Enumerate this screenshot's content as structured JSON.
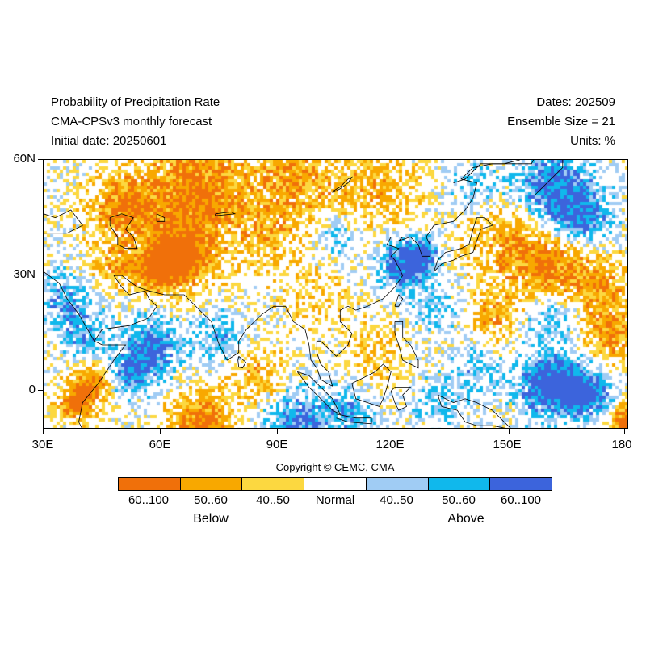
{
  "header": {
    "title": "Probability of Precipitation Rate",
    "model": "CMA-CPSv3 monthly forecast",
    "initial": "Initial date: 20250601",
    "dates": "Dates: 202509",
    "ensemble": "Ensemble Size = 21",
    "units": "Units: %"
  },
  "map": {
    "lon_range": [
      30,
      180
    ],
    "lat_range": [
      -10,
      60
    ],
    "x_ticks": [
      "30E",
      "60E",
      "90E",
      "120E",
      "150E",
      "180"
    ],
    "y_ticks": [
      "60N",
      "30N",
      "0"
    ],
    "coastline_color": "#000000"
  },
  "copyright": "Copyright © CEMC, CMA",
  "legend": {
    "bins": [
      {
        "label": "60..100",
        "color": "#f0700a"
      },
      {
        "label": "50..60",
        "color": "#f8a800"
      },
      {
        "label": "40..50",
        "color": "#fcd840"
      },
      {
        "label": "Normal",
        "color": "#ffffff"
      },
      {
        "label": "40..50",
        "color": "#a0ccf4"
      },
      {
        "label": "50..60",
        "color": "#10b8ec"
      },
      {
        "label": "60..100",
        "color": "#3c64dc"
      }
    ],
    "below_label": "Below",
    "above_label": "Above"
  }
}
